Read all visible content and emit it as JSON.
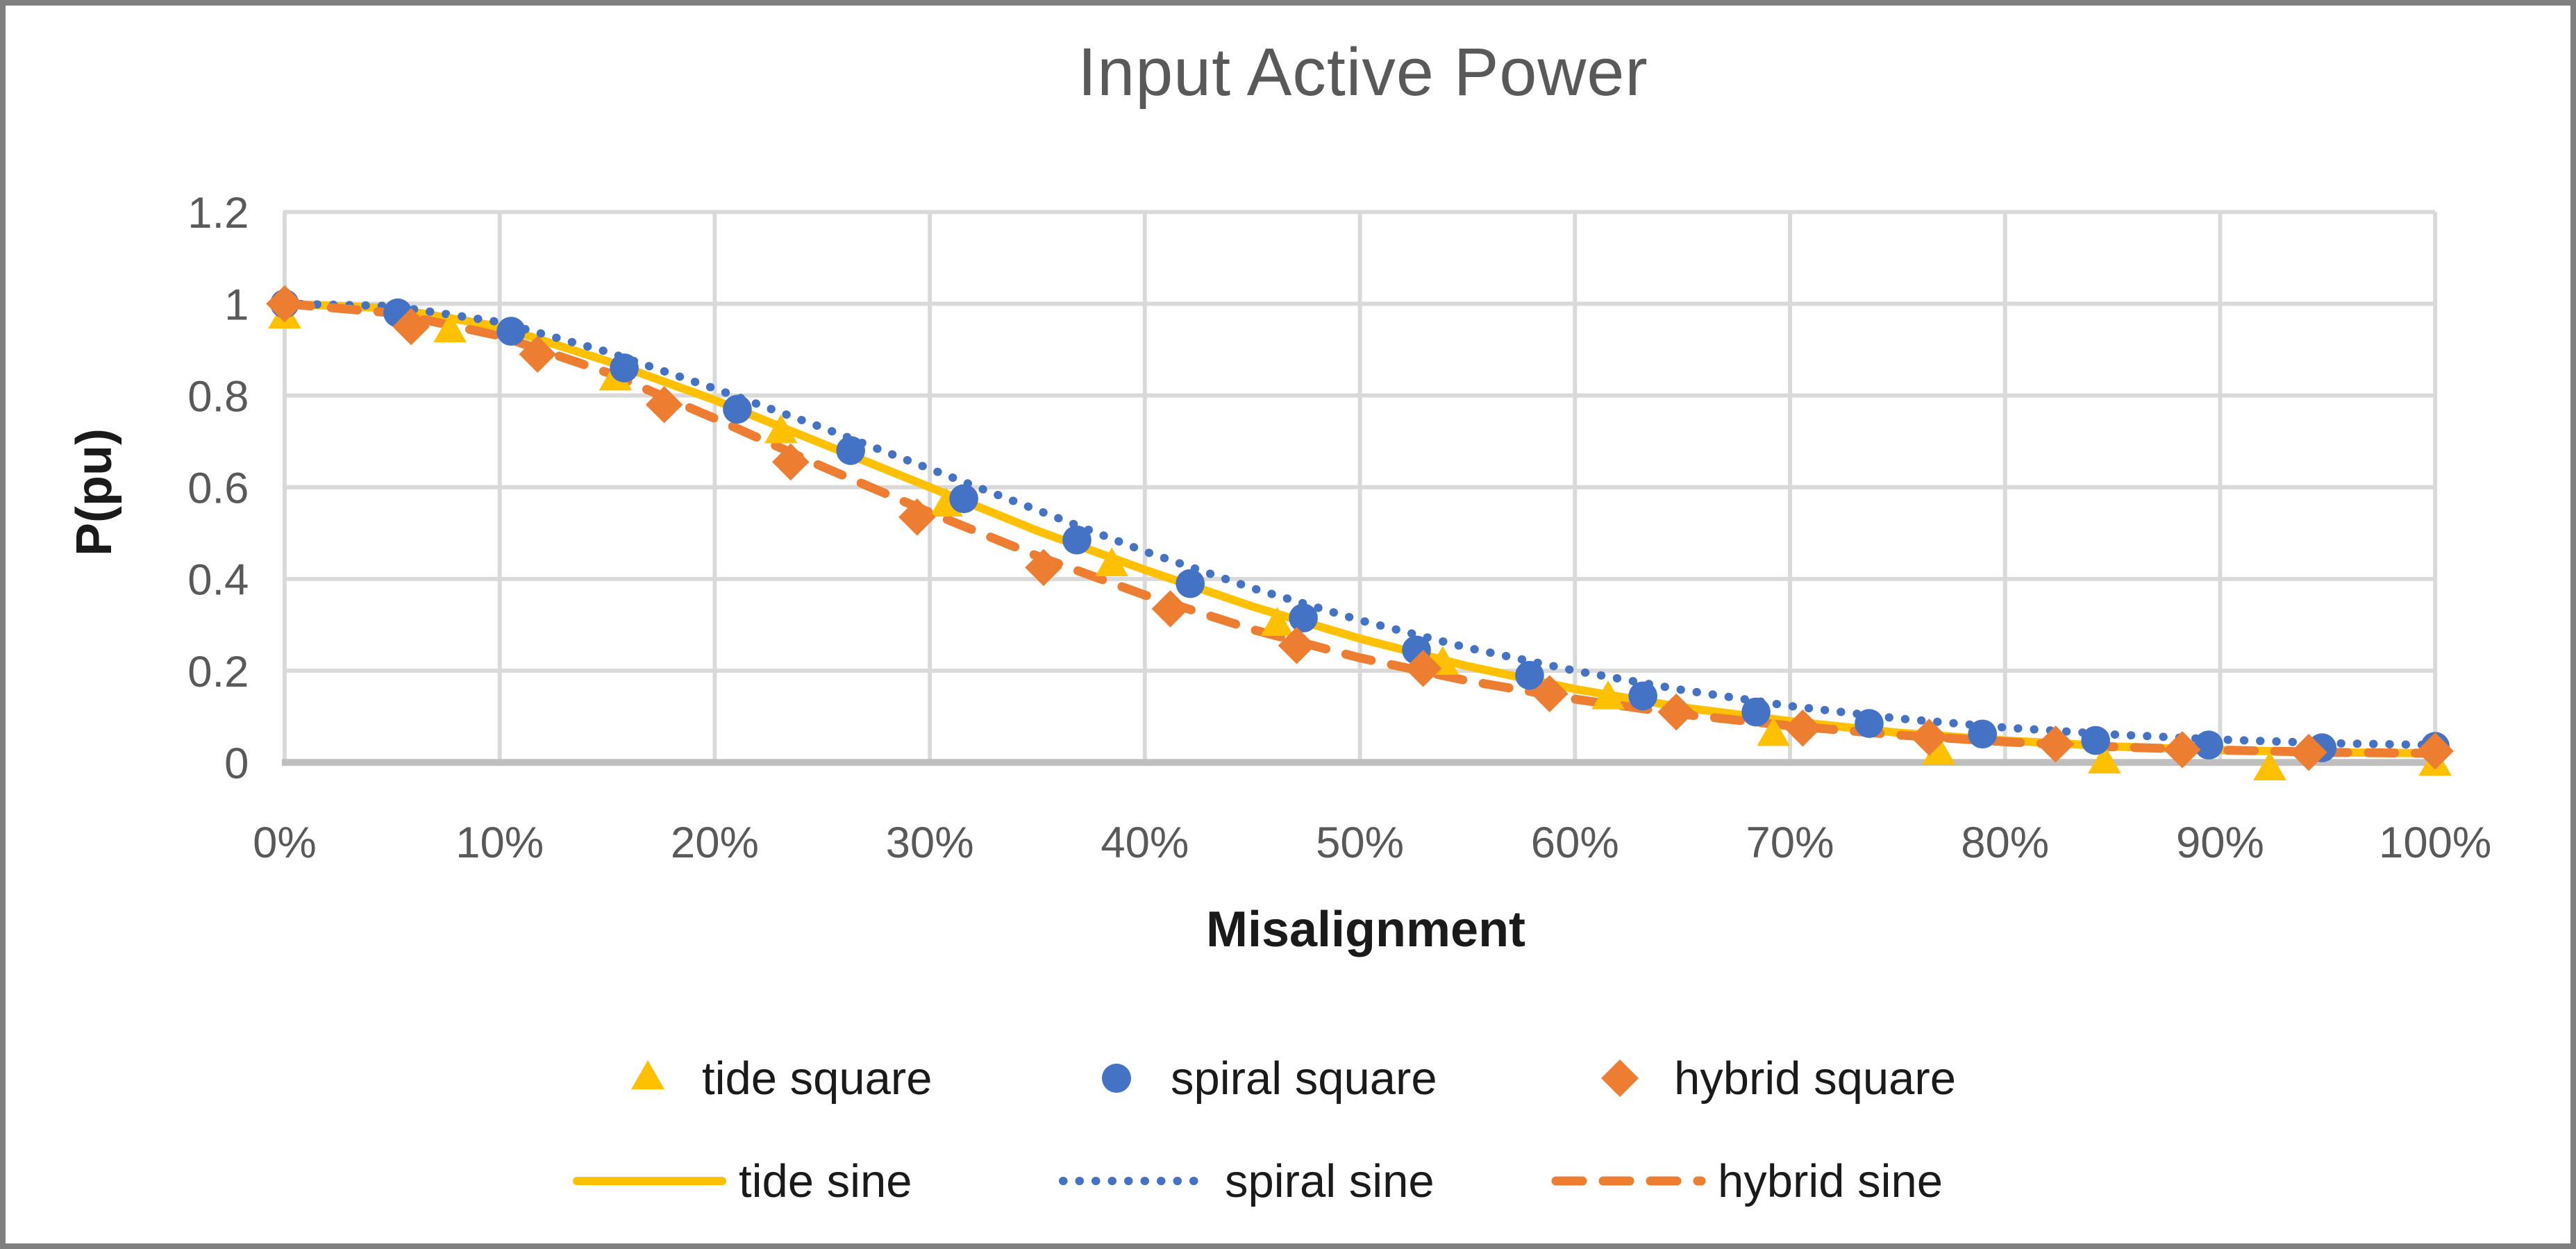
{
  "frame": {
    "border_color": "#7f7f7f",
    "background": "#ffffff"
  },
  "chart_data": {
    "type": "line",
    "title": "Input Active Power",
    "xlabel": "Misalignment",
    "ylabel": "P(pu)",
    "xlim": [
      0,
      100
    ],
    "ylim": [
      0,
      1.2
    ],
    "grid": true,
    "legend_position": "bottom",
    "x_ticks": [
      "0%",
      "10%",
      "20%",
      "30%",
      "40%",
      "50%",
      "60%",
      "70%",
      "80%",
      "90%",
      "100%"
    ],
    "x_tick_values": [
      0,
      10,
      20,
      30,
      40,
      50,
      60,
      70,
      80,
      90,
      100
    ],
    "y_ticks": [
      "0",
      "0.2",
      "0.4",
      "0.6",
      "0.8",
      "1",
      "1.2"
    ],
    "y_tick_values": [
      0,
      0.2,
      0.4,
      0.6,
      0.8,
      1,
      1.2
    ],
    "colors": {
      "tide": "#FFC000",
      "spiral": "#4472C4",
      "hybrid": "#ED7D31",
      "gridline": "#D9D9D9",
      "axis_line": "#BFBFBF",
      "tick_label": "#595959",
      "title": "#595959"
    },
    "series": [
      {
        "name": "tide square",
        "type": "scatter",
        "marker": "triangle",
        "color": "#FFC000",
        "x": [
          0,
          7.69,
          15.38,
          23.08,
          30.77,
          38.46,
          46.15,
          53.85,
          61.54,
          69.23,
          76.92,
          84.62,
          92.31,
          100
        ],
        "y": [
          0.97,
          0.94,
          0.835,
          0.72,
          0.56,
          0.43,
          0.3,
          0.215,
          0.14,
          0.06,
          0.02,
          0.0,
          -0.015,
          -0.005
        ]
      },
      {
        "name": "spiral square",
        "type": "scatter",
        "marker": "circle",
        "color": "#4472C4",
        "x": [
          0,
          5.26,
          10.53,
          15.79,
          21.05,
          26.32,
          31.58,
          36.84,
          42.11,
          47.37,
          52.63,
          57.89,
          63.16,
          68.42,
          73.68,
          78.95,
          84.21,
          89.47,
          94.74,
          100
        ],
        "y": [
          1.0,
          0.98,
          0.94,
          0.86,
          0.77,
          0.68,
          0.575,
          0.485,
          0.39,
          0.315,
          0.245,
          0.19,
          0.145,
          0.11,
          0.085,
          0.062,
          0.048,
          0.038,
          0.032,
          0.035
        ]
      },
      {
        "name": "hybrid square",
        "type": "scatter",
        "marker": "diamond",
        "color": "#ED7D31",
        "x": [
          0,
          5.88,
          11.76,
          17.65,
          23.53,
          29.41,
          35.29,
          41.18,
          47.06,
          52.94,
          58.82,
          64.71,
          70.59,
          76.47,
          82.35,
          88.24,
          94.12,
          100
        ],
        "y": [
          1.0,
          0.95,
          0.89,
          0.78,
          0.655,
          0.535,
          0.425,
          0.335,
          0.255,
          0.205,
          0.15,
          0.11,
          0.075,
          0.055,
          0.04,
          0.028,
          0.022,
          0.025
        ]
      },
      {
        "name": "tide sine",
        "type": "line",
        "style": "solid",
        "color": "#FFC000",
        "x": [
          0,
          5,
          10,
          15,
          20,
          25,
          30,
          35,
          40,
          45,
          50,
          55,
          60,
          65,
          70,
          75,
          80,
          85,
          90,
          95,
          100
        ],
        "y": [
          1.0,
          0.99,
          0.95,
          0.875,
          0.79,
          0.695,
          0.6,
          0.505,
          0.42,
          0.34,
          0.27,
          0.21,
          0.16,
          0.12,
          0.09,
          0.065,
          0.048,
          0.035,
          0.027,
          0.022,
          0.02
        ]
      },
      {
        "name": "spiral sine",
        "type": "line",
        "style": "dotted",
        "color": "#4472C4",
        "x": [
          0,
          5,
          10,
          15,
          20,
          25,
          30,
          35,
          40,
          45,
          50,
          55,
          60,
          65,
          70,
          75,
          80,
          85,
          90,
          95,
          100
        ],
        "y": [
          1.0,
          0.995,
          0.96,
          0.895,
          0.815,
          0.73,
          0.64,
          0.55,
          0.46,
          0.38,
          0.31,
          0.25,
          0.2,
          0.158,
          0.123,
          0.096,
          0.076,
          0.061,
          0.05,
          0.042,
          0.038
        ]
      },
      {
        "name": "hybrid sine",
        "type": "line",
        "style": "dashed",
        "color": "#ED7D31",
        "x": [
          0,
          5,
          10,
          15,
          20,
          25,
          30,
          35,
          40,
          45,
          50,
          55,
          60,
          65,
          70,
          75,
          80,
          85,
          90,
          95,
          100
        ],
        "y": [
          1.0,
          0.98,
          0.93,
          0.85,
          0.75,
          0.645,
          0.545,
          0.45,
          0.365,
          0.29,
          0.228,
          0.178,
          0.138,
          0.105,
          0.08,
          0.06,
          0.045,
          0.034,
          0.027,
          0.022,
          0.02
        ]
      }
    ],
    "legend": {
      "row1": [
        "tide square",
        "spiral square",
        "hybrid square"
      ],
      "row2": [
        "tide sine",
        "spiral sine",
        "hybrid sine"
      ]
    }
  }
}
